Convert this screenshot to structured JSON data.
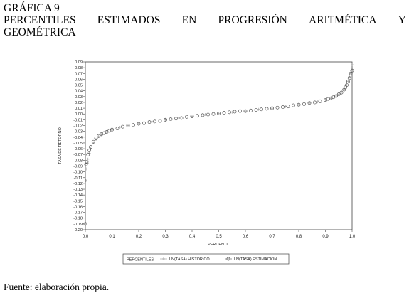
{
  "figure": {
    "label": "GRÁFICA 9",
    "title_words_line1": [
      "PERCENTILES",
      "ESTIMADOS",
      "EN",
      "PROGRESIÓN",
      "ARITMÉTICA",
      "Y"
    ],
    "title_line2": "GEOMÉTRICA",
    "source": "Fuente: elaboración propia."
  },
  "chart_data": {
    "type": "scatter",
    "xlabel": "PERCENTIL",
    "ylabel": "TASA DE RETORNO",
    "xlim": [
      0,
      1
    ],
    "ylim": [
      -0.2,
      0.09
    ],
    "x_ticks": [
      "0.0",
      "0.1",
      "0.2",
      "0.3",
      "0.4",
      "0.5",
      "0.6",
      "0.7",
      "0.8",
      "0.9",
      "1.0"
    ],
    "y_ticks": [
      "0.09",
      "0.08",
      "0.07",
      "0.06",
      "0.05",
      "0.04",
      "0.03",
      "0.02",
      "0.01",
      "0.00",
      "-0.01",
      "-0.02",
      "-0.03",
      "-0.04",
      "-0.05",
      "-0.06",
      "-0.07",
      "-0.08",
      "-0.09",
      "-0.10",
      "-0.11",
      "-0.12",
      "-0.13",
      "-0.14",
      "-0.15",
      "-0.16",
      "-0.17",
      "-0.18",
      "-0.19",
      "-0.20"
    ],
    "grid": false,
    "legend_position": "bottom",
    "legend_title": "PERCENTILES",
    "series": [
      {
        "name": "LN(TASA) HISTORICO",
        "marker": "plus",
        "color": "#9a9a9a",
        "points": [
          [
            0.0,
            -0.19
          ],
          [
            0.0025,
            -0.115
          ],
          [
            0.005,
            -0.095
          ],
          [
            0.0075,
            -0.085
          ],
          [
            0.01,
            -0.078
          ],
          [
            0.015,
            -0.068
          ],
          [
            0.02,
            -0.06
          ],
          [
            0.03,
            -0.05
          ],
          [
            0.04,
            -0.044
          ],
          [
            0.05,
            -0.039
          ],
          [
            0.06,
            -0.036
          ],
          [
            0.08,
            -0.031
          ],
          [
            0.1,
            -0.027
          ],
          [
            0.13,
            -0.023
          ],
          [
            0.16,
            -0.02
          ],
          [
            0.2,
            -0.017
          ],
          [
            0.25,
            -0.013
          ],
          [
            0.3,
            -0.01
          ],
          [
            0.35,
            -0.007
          ],
          [
            0.4,
            -0.004
          ],
          [
            0.45,
            -0.001
          ],
          [
            0.5,
            0.001
          ],
          [
            0.55,
            0.003
          ],
          [
            0.6,
            0.005
          ],
          [
            0.65,
            0.008
          ],
          [
            0.7,
            0.01
          ],
          [
            0.75,
            0.013
          ],
          [
            0.8,
            0.016
          ],
          [
            0.84,
            0.019
          ],
          [
            0.87,
            0.021
          ],
          [
            0.9,
            0.024
          ],
          [
            0.92,
            0.027
          ],
          [
            0.94,
            0.031
          ],
          [
            0.95,
            0.034
          ],
          [
            0.96,
            0.038
          ],
          [
            0.97,
            0.043
          ],
          [
            0.98,
            0.05
          ],
          [
            0.985,
            0.056
          ],
          [
            0.99,
            0.064
          ],
          [
            0.995,
            0.07
          ],
          [
            1.0,
            0.085
          ]
        ]
      },
      {
        "name": "LN(TASA) ESTIMACION",
        "marker": "circle",
        "color": "#555555",
        "points": [
          [
            0.0,
            -0.19
          ],
          [
            0.0025,
            -0.087
          ],
          [
            0.005,
            -0.083
          ],
          [
            0.01,
            -0.07
          ],
          [
            0.015,
            -0.063
          ],
          [
            0.02,
            -0.057
          ],
          [
            0.03,
            -0.048
          ],
          [
            0.04,
            -0.042
          ],
          [
            0.05,
            -0.038
          ],
          [
            0.06,
            -0.035
          ],
          [
            0.07,
            -0.033
          ],
          [
            0.08,
            -0.031
          ],
          [
            0.09,
            -0.029
          ],
          [
            0.1,
            -0.027
          ],
          [
            0.12,
            -0.025
          ],
          [
            0.14,
            -0.022
          ],
          [
            0.16,
            -0.02
          ],
          [
            0.18,
            -0.019
          ],
          [
            0.2,
            -0.017
          ],
          [
            0.22,
            -0.016
          ],
          [
            0.24,
            -0.014
          ],
          [
            0.26,
            -0.013
          ],
          [
            0.28,
            -0.012
          ],
          [
            0.3,
            -0.01
          ],
          [
            0.32,
            -0.009
          ],
          [
            0.34,
            -0.008
          ],
          [
            0.36,
            -0.007
          ],
          [
            0.38,
            -0.005
          ],
          [
            0.4,
            -0.004
          ],
          [
            0.42,
            -0.003
          ],
          [
            0.44,
            -0.002
          ],
          [
            0.46,
            -0.001
          ],
          [
            0.48,
            0.0
          ],
          [
            0.5,
            0.001
          ],
          [
            0.52,
            0.002
          ],
          [
            0.54,
            0.003
          ],
          [
            0.56,
            0.004
          ],
          [
            0.58,
            0.005
          ],
          [
            0.6,
            0.005
          ],
          [
            0.62,
            0.006
          ],
          [
            0.64,
            0.007
          ],
          [
            0.66,
            0.008
          ],
          [
            0.68,
            0.009
          ],
          [
            0.7,
            0.01
          ],
          [
            0.72,
            0.011
          ],
          [
            0.74,
            0.012
          ],
          [
            0.76,
            0.013
          ],
          [
            0.78,
            0.015
          ],
          [
            0.8,
            0.016
          ],
          [
            0.82,
            0.017
          ],
          [
            0.84,
            0.019
          ],
          [
            0.86,
            0.02
          ],
          [
            0.88,
            0.022
          ],
          [
            0.9,
            0.024
          ],
          [
            0.91,
            0.026
          ],
          [
            0.92,
            0.027
          ],
          [
            0.93,
            0.029
          ],
          [
            0.94,
            0.031
          ],
          [
            0.95,
            0.034
          ],
          [
            0.96,
            0.037
          ],
          [
            0.97,
            0.042
          ],
          [
            0.975,
            0.046
          ],
          [
            0.98,
            0.05
          ],
          [
            0.985,
            0.056
          ],
          [
            0.99,
            0.062
          ],
          [
            0.995,
            0.07
          ],
          [
            1.0,
            0.075
          ]
        ]
      }
    ]
  }
}
